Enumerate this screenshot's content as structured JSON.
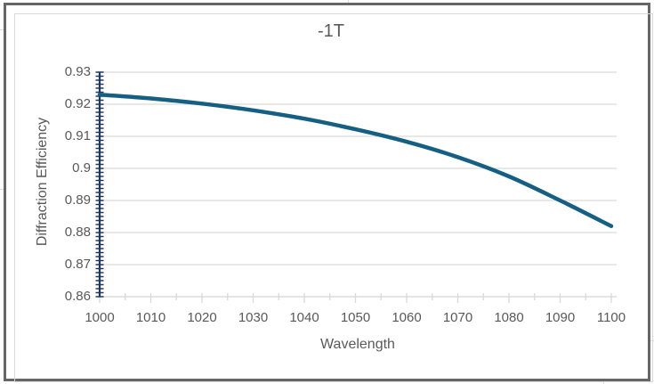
{
  "chart_data": {
    "type": "line",
    "title": "-1T",
    "xlabel": "Wavelength",
    "ylabel": "Diffraction Efficiency",
    "x": [
      1000,
      1010,
      1020,
      1030,
      1040,
      1050,
      1060,
      1070,
      1080,
      1090,
      1100
    ],
    "series": [
      {
        "name": "-1T",
        "values": [
          0.923,
          0.9218,
          0.9202,
          0.9181,
          0.9155,
          0.9122,
          0.9083,
          0.9035,
          0.8975,
          0.89,
          0.882
        ]
      }
    ],
    "xlim": [
      1000,
      1101
    ],
    "ylim": [
      0.86,
      0.93
    ],
    "x_tick_labels": [
      "1000",
      "1010",
      "1020",
      "1030",
      "1040",
      "1050",
      "1060",
      "1070",
      "1080",
      "1090",
      "1100"
    ],
    "x_minor_tick_step": 5,
    "y_tick_labels": [
      "0.93",
      "0.92",
      "0.91",
      "0.9",
      "0.89",
      "0.88",
      "0.87",
      "0.86"
    ],
    "y_tick_values": [
      0.93,
      0.92,
      0.91,
      0.9,
      0.89,
      0.88,
      0.87,
      0.86
    ],
    "y_minor_tick_step": 0.00125,
    "grid": "horizontal",
    "legend": "none",
    "colors": {
      "line": "#156082",
      "y_axis": "#1f3864",
      "grid": "#d9d9d9",
      "text": "#595959",
      "border": "#666666"
    }
  }
}
